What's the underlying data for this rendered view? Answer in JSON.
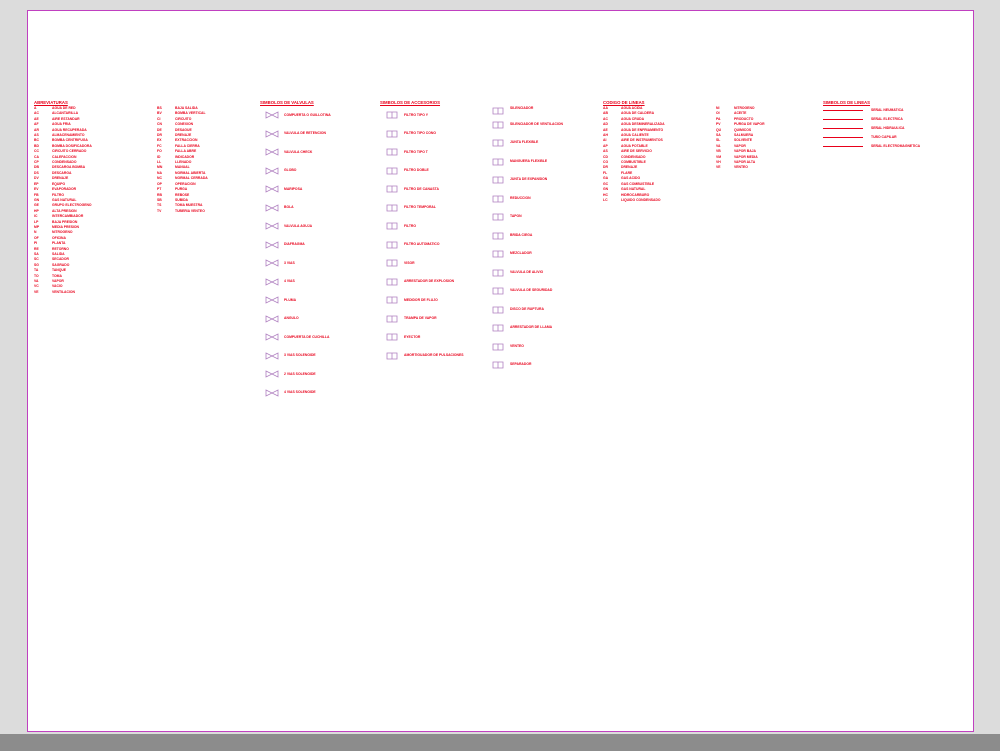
{
  "colors": {
    "sheet": "#ffffff",
    "ink": "#e8001a",
    "border": "#c040c0",
    "symbol_stroke": "#b080c0"
  },
  "sections": {
    "abbreviations": {
      "title": "ABREVIATURAS",
      "left": [
        [
          "A",
          "AGUA DE RED"
        ],
        [
          "AC",
          "ALCANTARILLA"
        ],
        [
          "AE",
          "AIRE ESTANDAR"
        ],
        [
          "AF",
          "AGUA FRIA"
        ],
        [
          "AR",
          "AGUA RECUPERADA"
        ],
        [
          "AS",
          "ALMACENAMIENTO"
        ],
        [
          "BC",
          "BOMBA CENTRIFUGA"
        ],
        [
          "BD",
          "BOMBA DOSIFICADORA"
        ],
        [
          "CC",
          "CIRCUITO CERRADO"
        ],
        [
          "CA",
          "CALEFACCION"
        ],
        [
          "CP",
          "CONDENSADO"
        ],
        [
          "DB",
          "DESCARGA BOMBA"
        ],
        [
          "DS",
          "DESCARGA"
        ],
        [
          "DV",
          "DRENAJE"
        ],
        [
          "EP",
          "EQUIPO"
        ],
        [
          "EV",
          "EVAPORADOR"
        ],
        [
          "FB",
          "FILTRO"
        ],
        [
          "GN",
          "GAS NATURAL"
        ],
        [
          "GE",
          "GRUPO ELECTROGENO"
        ],
        [
          "HP",
          "ALTA PRESION"
        ],
        [
          "IC",
          "INTERCAMBIADOR"
        ],
        [
          "LP",
          "BAJA PRESION"
        ],
        [
          "MP",
          "MEDIA PRESION"
        ],
        [
          "N",
          "NITROGENO"
        ],
        [
          "OF",
          "OFICINA"
        ],
        [
          "PI",
          "PLANTA"
        ],
        [
          "RE",
          "RETORNO"
        ],
        [
          "SA",
          "SALIDA"
        ],
        [
          "SC",
          "SECADOR"
        ],
        [
          "SG",
          "SAGRADO"
        ],
        [
          "TA",
          "TANQUE"
        ],
        [
          "TO",
          "TOMA"
        ],
        [
          "VA",
          "VAPOR"
        ],
        [
          "VC",
          "VACIO"
        ],
        [
          "VE",
          "VENTILACION"
        ]
      ],
      "right": [
        [
          "BS",
          "BAJA SALIDA"
        ],
        [
          "BV",
          "BOMBA VERTICAL"
        ],
        [
          "CI",
          "CIRCUITO"
        ],
        [
          "CN",
          "CONEXION"
        ],
        [
          "DE",
          "DESAGUE"
        ],
        [
          "DR",
          "DRENAJE"
        ],
        [
          "EX",
          "EXTRACCION"
        ],
        [
          "FC",
          "FALLA CIERRA"
        ],
        [
          "FO",
          "FALLA ABRE"
        ],
        [
          "ID",
          "INDICADOR"
        ],
        [
          "LL",
          "LLENADO"
        ],
        [
          "MN",
          "MANUAL"
        ],
        [
          "NA",
          "NORMAL ABIERTA"
        ],
        [
          "NC",
          "NORMAL CERRADA"
        ],
        [
          "OP",
          "OPERACION"
        ],
        [
          "PT",
          "PURGA"
        ],
        [
          "RB",
          "REBOSE"
        ],
        [
          "SB",
          "SUBIDA"
        ],
        [
          "TS",
          "TOMA MUESTRA"
        ],
        [
          "TV",
          "TUBERIA VENTEO"
        ]
      ]
    },
    "valve_symbols": {
      "title": "SIMBOLOS DE VALVULAS",
      "items": [
        "COMPUERTA O GUILLOTINA",
        "VALVULA DE RETENCION",
        "VALVULA CHECK",
        "GLOBO",
        "MARIPOSA",
        "BOLA",
        "VALVULA AGUJA",
        "DIAFRAGMA",
        "3 VIAS",
        "4 VIAS",
        "PLUMA",
        "ANGULO",
        "COMPUERTA DE CUCHILLA",
        "3 VIAS SOLENOIDE",
        "2 VIAS SOLENOIDE",
        "4 VIAS SOLENOIDE"
      ]
    },
    "accessories": {
      "title": "SIMBOLOS DE ACCESORIOS",
      "items": [
        "FILTRO TIPO Y",
        "FILTRO TIPO CONO",
        "FILTRO TIPO T",
        "FILTRO DOBLE",
        "FILTRO DE CANASTA",
        "FILTRO TEMPORAL",
        "FILTRO",
        "FILTRO AUTOMATICO",
        "VISOR",
        "ARRESTADOR DE EXPLOSION",
        "MEDIDOR DE FLUJO",
        "TRAMPA DE VAPOR",
        "EYECTOR",
        "AMORTIGUADOR DE PULSACIONES",
        "SILENCIADOR",
        "SILENCIADOR DE VENTILACION",
        "JUNTA FLEXIBLE",
        "MANGUERA FLEXIBLE",
        "JUNTA DE EXPANSION",
        "REDUCCION",
        "TAPON",
        "BRIDA CIEGA",
        "MEZCLADOR",
        "VALVULA DE ALIVIO",
        "VALVULA DE SEGURIDAD",
        "DISCO DE RUPTURA",
        "ARRESTADOR DE LLAMA",
        "VENTEO",
        "SEPARADOR"
      ]
    },
    "line_codes": {
      "title": "CODIGO DE LINEAS",
      "left": [
        [
          "AA",
          "AGUA ACIDA"
        ],
        [
          "AB",
          "AGUA DE CALDERA"
        ],
        [
          "AC",
          "AGUA CRUDA"
        ],
        [
          "AD",
          "AGUA DESMINERALIZADA"
        ],
        [
          "AE",
          "AGUA DE ENFRIAMIENTO"
        ],
        [
          "AH",
          "AGUA CALIENTE"
        ],
        [
          "AI",
          "AIRE DE INSTRUMENTOS"
        ],
        [
          "AP",
          "AGUA POTABLE"
        ],
        [
          "AS",
          "AIRE DE SERVICIO"
        ],
        [
          "CD",
          "CONDENSADO"
        ],
        [
          "CO",
          "COMBUSTIBLE"
        ],
        [
          "DR",
          "DRENAJE"
        ],
        [
          "FL",
          "FLARE"
        ],
        [
          "GA",
          "GAS ACIDO"
        ],
        [
          "GC",
          "GAS COMBUSTIBLE"
        ],
        [
          "GN",
          "GAS NATURAL"
        ],
        [
          "HC",
          "HIDROCARBURO"
        ],
        [
          "LC",
          "LIQUIDO CONDENSADO"
        ]
      ],
      "right": [
        [
          "NI",
          "NITROGENO"
        ],
        [
          "OI",
          "ACEITE"
        ],
        [
          "PA",
          "PRODUCTO"
        ],
        [
          "PV",
          "PURGA DE VAPOR"
        ],
        [
          "QU",
          "QUIMICOS"
        ],
        [
          "SA",
          "SALMUERA"
        ],
        [
          "SL",
          "SOLVENTE"
        ],
        [
          "VA",
          "VAPOR"
        ],
        [
          "VB",
          "VAPOR BAJA"
        ],
        [
          "VM",
          "VAPOR MEDIA"
        ],
        [
          "VH",
          "VAPOR ALTA"
        ],
        [
          "VE",
          "VENTEO"
        ]
      ]
    },
    "line_types": {
      "title": "SIMBOLOS DE LINEAS",
      "items": [
        "SEÑAL NEUMATICA",
        "SEÑAL ELECTRICA",
        "SEÑAL HIDRAULICA",
        "TUBO CAPILAR",
        "SEÑAL ELECTROMAGNETICA"
      ]
    }
  }
}
